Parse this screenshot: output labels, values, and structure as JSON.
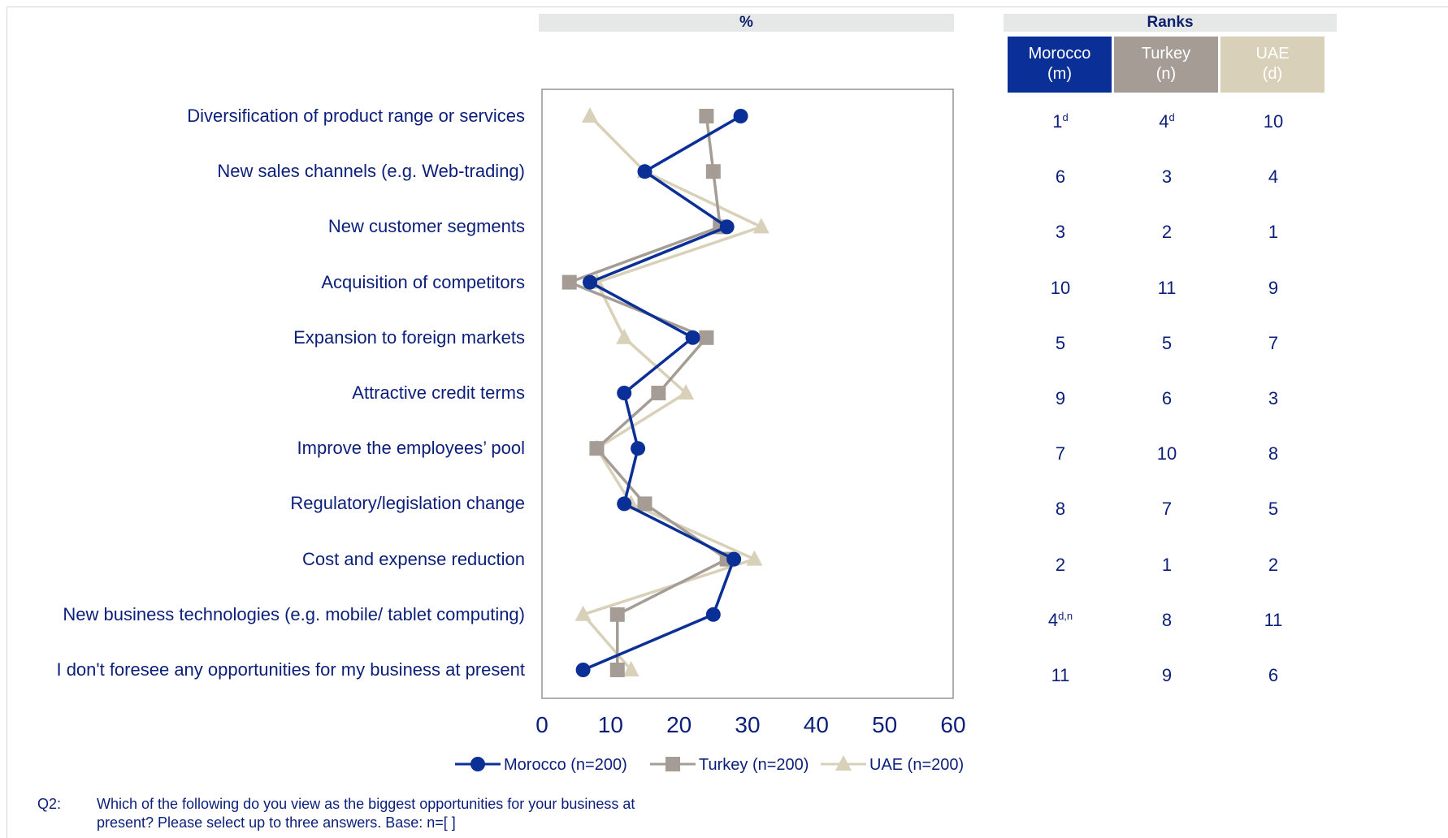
{
  "header": {
    "percent_label": "%",
    "ranks_label": "Ranks"
  },
  "chart_data": {
    "type": "line",
    "orientation": "horizontal-categories",
    "categories": [
      "Diversification of product range or services",
      "New sales channels (e.g. Web-trading)",
      "New customer segments",
      "Acquisition of competitors",
      "Expansion to foreign markets",
      "Attractive credit terms",
      "Improve the employees’ pool",
      "Regulatory/legislation change",
      "Cost and expense reduction",
      "New business technologies (e.g. mobile/ tablet computing)",
      "I don't foresee any opportunities for my business at present"
    ],
    "series": [
      {
        "name": "Morocco (n=200)",
        "color": "#0a2f96",
        "marker": "circle",
        "values": [
          29,
          15,
          27,
          7,
          22,
          12,
          14,
          12,
          28,
          25,
          6
        ]
      },
      {
        "name": "Turkey (n=200)",
        "color": "#a59d95",
        "marker": "square",
        "values": [
          24,
          25,
          26,
          4,
          24,
          17,
          8,
          15,
          27,
          11,
          11
        ]
      },
      {
        "name": "UAE (n=200)",
        "color": "#d8d0b8",
        "marker": "triangle",
        "values": [
          7,
          15,
          32,
          8,
          12,
          21,
          8,
          13,
          31,
          6,
          13
        ]
      }
    ],
    "xlim": [
      0,
      60
    ],
    "xticks": [
      0,
      10,
      20,
      30,
      40,
      50,
      60
    ],
    "legend_position": "bottom",
    "grid": false
  },
  "ranks": {
    "columns": [
      {
        "name": "Morocco",
        "code": "(m)",
        "bg": "#0a2f96",
        "fg": "#ffffff"
      },
      {
        "name": "Turkey",
        "code": "(n)",
        "bg": "#a59d95",
        "fg": "#ffffff"
      },
      {
        "name": "UAE",
        "code": "(d)",
        "bg": "#d8d0b8",
        "fg": "#ffffff"
      }
    ],
    "rows": [
      [
        {
          "v": "1",
          "s": "d"
        },
        {
          "v": "4",
          "s": "d"
        },
        {
          "v": "10",
          "s": ""
        }
      ],
      [
        {
          "v": "6",
          "s": ""
        },
        {
          "v": "3",
          "s": ""
        },
        {
          "v": "4",
          "s": ""
        }
      ],
      [
        {
          "v": "3",
          "s": ""
        },
        {
          "v": "2",
          "s": ""
        },
        {
          "v": "1",
          "s": ""
        }
      ],
      [
        {
          "v": "10",
          "s": ""
        },
        {
          "v": "11",
          "s": ""
        },
        {
          "v": "9",
          "s": ""
        }
      ],
      [
        {
          "v": "5",
          "s": ""
        },
        {
          "v": "5",
          "s": ""
        },
        {
          "v": "7",
          "s": ""
        }
      ],
      [
        {
          "v": "9",
          "s": ""
        },
        {
          "v": "6",
          "s": ""
        },
        {
          "v": "3",
          "s": ""
        }
      ],
      [
        {
          "v": "7",
          "s": ""
        },
        {
          "v": "10",
          "s": ""
        },
        {
          "v": "8",
          "s": ""
        }
      ],
      [
        {
          "v": "8",
          "s": ""
        },
        {
          "v": "7",
          "s": ""
        },
        {
          "v": "5",
          "s": ""
        }
      ],
      [
        {
          "v": "2",
          "s": ""
        },
        {
          "v": "1",
          "s": ""
        },
        {
          "v": "2",
          "s": ""
        }
      ],
      [
        {
          "v": "4",
          "s": "d,n"
        },
        {
          "v": "8",
          "s": ""
        },
        {
          "v": "11",
          "s": ""
        }
      ],
      [
        {
          "v": "11",
          "s": ""
        },
        {
          "v": "9",
          "s": ""
        },
        {
          "v": "6",
          "s": ""
        }
      ]
    ]
  },
  "footnote": {
    "q_label": "Q2:",
    "line1": "Which of the following do you view as the biggest opportunities for your business at",
    "line2": "present? Please select up to three answers. Base: n=[ ]"
  }
}
